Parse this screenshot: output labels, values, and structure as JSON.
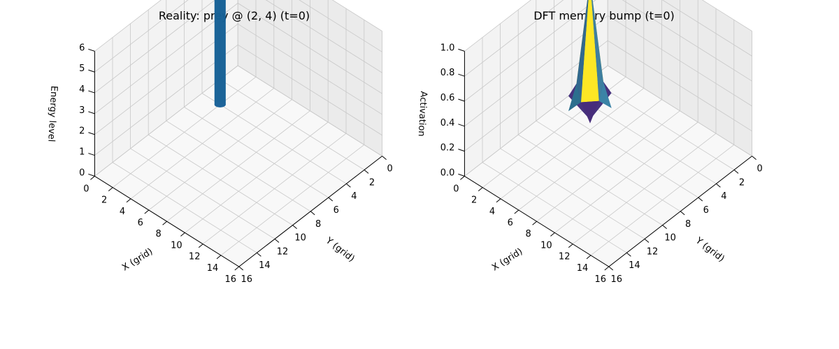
{
  "chart_data": [
    {
      "type": "bar3d",
      "title": "Reality: prey @ (2, 4) (t=0)",
      "xlabel": "X (grid)",
      "ylabel": "Y (grid)",
      "zlabel": "Energy level",
      "xlim": [
        0,
        16
      ],
      "ylim": [
        0,
        16
      ],
      "zlim": [
        0,
        6
      ],
      "xticks": [
        "0",
        "2",
        "4",
        "6",
        "8",
        "10",
        "12",
        "14",
        "16"
      ],
      "yticks": [
        "0",
        "2",
        "4",
        "6",
        "8",
        "10",
        "12",
        "14",
        "16"
      ],
      "zticks": [
        "0",
        "1",
        "2",
        "3",
        "4",
        "5",
        "6"
      ],
      "grid": true,
      "bars": [
        {
          "x": 2,
          "y": 4,
          "z": 6,
          "color": "#1f77b4"
        }
      ]
    },
    {
      "type": "surface3d",
      "title": "DFT memory bump (t=0)",
      "xlabel": "X (grid)",
      "ylabel": "Y (grid)",
      "zlabel": "Activation",
      "xlim": [
        0,
        16
      ],
      "ylim": [
        0,
        16
      ],
      "zlim": [
        0,
        1
      ],
      "xticks": [
        "0",
        "2",
        "4",
        "6",
        "8",
        "10",
        "12",
        "14",
        "16"
      ],
      "yticks": [
        "0",
        "2",
        "4",
        "6",
        "8",
        "10",
        "12",
        "14",
        "16"
      ],
      "zticks": [
        "0.0",
        "0.2",
        "0.4",
        "0.6",
        "0.8",
        "1.0"
      ],
      "grid": true,
      "colormap": "viridis",
      "peak": {
        "x": 2,
        "y": 4,
        "z": 1.0
      }
    }
  ],
  "colors": {
    "pane_left": "#ebebeb",
    "pane_right": "#f3f3f3",
    "pane_floor": "#f8f8f8",
    "grid": "#c8c8c8",
    "bar": "#1f77b4"
  }
}
